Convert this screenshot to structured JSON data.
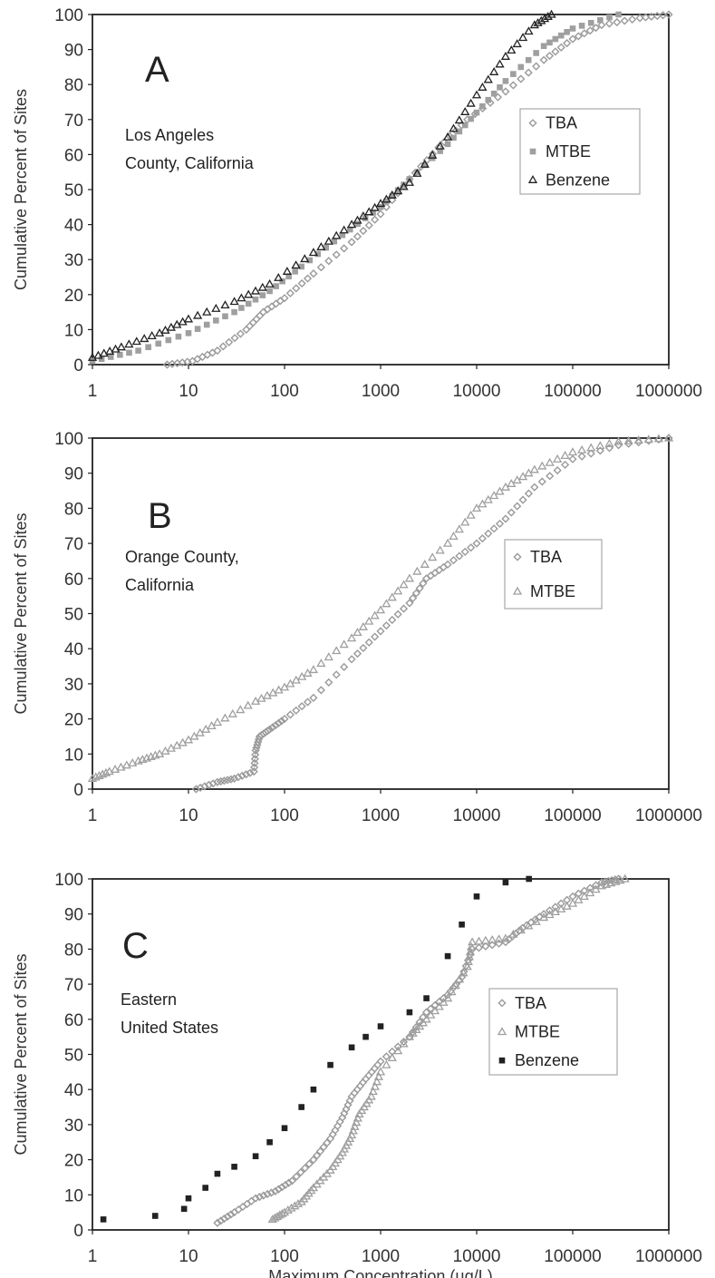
{
  "colors": {
    "TBA": "#9a9a9a",
    "MTBE": "#9f9f9f",
    "Benzene": "#222222",
    "axis": "#222222",
    "legend_box": "#a8a8a8"
  },
  "chart_data": [
    {
      "type": "scatter",
      "panel": "A",
      "location": [
        "Los Angeles",
        "County, California"
      ],
      "ylabel": "Cumulative Percent of Sites",
      "xlabel": "",
      "x_scale": "log",
      "xlim": [
        1,
        1000000
      ],
      "ylim": [
        0,
        100
      ],
      "x_ticks": [
        "1",
        "10",
        "100",
        "1000",
        "10000",
        "100000",
        "1000000"
      ],
      "y_ticks": [
        "0",
        "10",
        "20",
        "30",
        "40",
        "50",
        "60",
        "70",
        "80",
        "90",
        "100"
      ],
      "legend": {
        "position": "right",
        "entries": [
          "TBA",
          "MTBE",
          "Benzene"
        ]
      },
      "series": [
        {
          "name": "TBA",
          "marker": "diamond",
          "color": "#9a9a9a",
          "x": [
            6,
            11,
            20,
            40,
            60,
            100,
            200,
            500,
            1000,
            2000,
            4000,
            8000,
            20000,
            50000,
            100000,
            200000,
            500000,
            1000000
          ],
          "y": [
            0,
            1,
            4,
            10,
            15,
            19,
            26,
            35,
            43,
            53,
            62,
            70,
            78,
            87,
            93,
            97,
            99,
            100
          ]
        },
        {
          "name": "MTBE",
          "marker": "square",
          "color": "#9f9f9f",
          "x": [
            1,
            3,
            10,
            30,
            70,
            150,
            400,
            1000,
            2000,
            5000,
            10000,
            20000,
            50000,
            100000,
            300000
          ],
          "y": [
            1,
            4,
            9,
            15,
            21,
            28,
            37,
            45,
            53,
            63,
            72,
            81,
            91,
            96,
            100
          ]
        },
        {
          "name": "Benzene",
          "marker": "triangle",
          "color": "#222222",
          "x": [
            1,
            2,
            5,
            10,
            30,
            70,
            200,
            500,
            1000,
            2000,
            5000,
            10000,
            20000,
            40000,
            60000
          ],
          "y": [
            2,
            5,
            9,
            13,
            18,
            23,
            32,
            40,
            46,
            52,
            65,
            77,
            88,
            97,
            100
          ]
        }
      ]
    },
    {
      "type": "scatter",
      "panel": "B",
      "location": [
        "Orange County,",
        "California"
      ],
      "ylabel": "Cumulative Percent of Sites",
      "xlabel": "",
      "x_scale": "log",
      "xlim": [
        1,
        1000000
      ],
      "ylim": [
        0,
        100
      ],
      "x_ticks": [
        "1",
        "10",
        "100",
        "1000",
        "10000",
        "100000",
        "1000000"
      ],
      "y_ticks": [
        "0",
        "10",
        "20",
        "30",
        "40",
        "50",
        "60",
        "70",
        "80",
        "90",
        "100"
      ],
      "legend": {
        "position": "right",
        "entries": [
          "TBA",
          "MTBE"
        ]
      },
      "series": [
        {
          "name": "TBA",
          "marker": "diamond",
          "color": "#9a9a9a",
          "x": [
            12,
            20,
            30,
            48,
            50,
            55,
            70,
            100,
            200,
            500,
            1000,
            2000,
            3000,
            5000,
            10000,
            20000,
            40000,
            100000,
            300000,
            1000000
          ],
          "y": [
            0,
            2,
            3,
            5,
            11,
            15,
            17,
            20,
            26,
            37,
            45,
            53,
            60,
            64,
            70,
            77,
            86,
            94,
            98,
            100
          ]
        },
        {
          "name": "MTBE",
          "marker": "triangle",
          "color": "#9f9f9f",
          "x": [
            1,
            1.5,
            3,
            5,
            10,
            20,
            50,
            100,
            200,
            500,
            1000,
            2000,
            5000,
            10000,
            20000,
            40000,
            100000,
            300000,
            1000000
          ],
          "y": [
            3,
            5,
            8,
            10,
            14,
            19,
            25,
            29,
            34,
            43,
            51,
            60,
            70,
            80,
            86,
            91,
            96,
            99,
            100
          ]
        }
      ]
    },
    {
      "type": "scatter",
      "panel": "C",
      "location": [
        "Eastern",
        "United States"
      ],
      "ylabel": "Cumulative Percent of Sites",
      "xlabel": "Maximum Concentration (µg/L)",
      "x_scale": "log",
      "xlim": [
        1,
        1000000
      ],
      "ylim": [
        0,
        100
      ],
      "x_ticks": [
        "1",
        "10",
        "100",
        "1000",
        "10000",
        "100000",
        "1000000"
      ],
      "y_ticks": [
        "0",
        "10",
        "20",
        "30",
        "40",
        "50",
        "60",
        "70",
        "80",
        "90",
        "100"
      ],
      "legend": {
        "position": "right",
        "entries": [
          "TBA",
          "MTBE",
          "Benzene"
        ]
      },
      "series": [
        {
          "name": "TBA",
          "marker": "diamond",
          "color": "#9a9a9a",
          "x": [
            20,
            30,
            50,
            80,
            120,
            200,
            300,
            400,
            500,
            700,
            1000,
            2000,
            3000,
            5000,
            7000,
            9000,
            20000,
            30000,
            50000,
            100000,
            200000,
            300000
          ],
          "y": [
            2,
            5,
            9,
            11,
            14,
            20,
            26,
            32,
            38,
            43,
            48,
            55,
            62,
            67,
            72,
            80,
            82,
            86,
            90,
            95,
            99,
            100
          ]
        },
        {
          "name": "MTBE",
          "marker": "triangle",
          "color": "#9f9f9f",
          "x": [
            75,
            100,
            150,
            200,
            300,
            400,
            500,
            600,
            800,
            1000,
            2000,
            3000,
            5000,
            8000,
            9000,
            20000,
            50000,
            100000,
            200000,
            350000
          ],
          "y": [
            3,
            5,
            8,
            12,
            17,
            22,
            27,
            33,
            38,
            45,
            55,
            60,
            66,
            75,
            82,
            83,
            89,
            93,
            98,
            100
          ]
        },
        {
          "name": "Benzene",
          "marker": "square",
          "color": "#222222",
          "x": [
            1.3,
            4.5,
            9,
            10,
            15,
            20,
            30,
            50,
            70,
            100,
            150,
            200,
            300,
            500,
            700,
            1000,
            2000,
            3000,
            5000,
            7000,
            10000,
            20000,
            35000
          ],
          "y": [
            3,
            4,
            6,
            9,
            12,
            16,
            18,
            21,
            25,
            29,
            35,
            40,
            47,
            52,
            55,
            58,
            62,
            66,
            78,
            87,
            95,
            99,
            100
          ]
        }
      ]
    }
  ]
}
